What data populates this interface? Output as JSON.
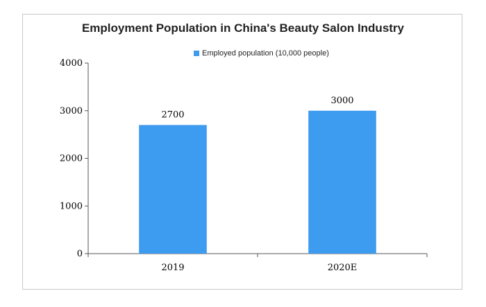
{
  "chart_data": {
    "type": "bar",
    "title": "Employment Population in China's Beauty Salon Industry",
    "categories": [
      "2019",
      "2020E"
    ],
    "series": [
      {
        "name": "Employed population (10,000 people)",
        "values": [
          2700,
          3000
        ]
      }
    ],
    "data_labels": [
      "2700",
      "3000"
    ],
    "ylim": [
      0,
      4000
    ],
    "yticks": [
      0,
      1000,
      2000,
      3000,
      4000
    ],
    "ytick_labels": [
      "0",
      "1000",
      "2000",
      "3000",
      "4000"
    ],
    "xlabel": "",
    "ylabel": "",
    "grid": false,
    "legend_position": "top",
    "bar_color": "#3d9bf0"
  }
}
